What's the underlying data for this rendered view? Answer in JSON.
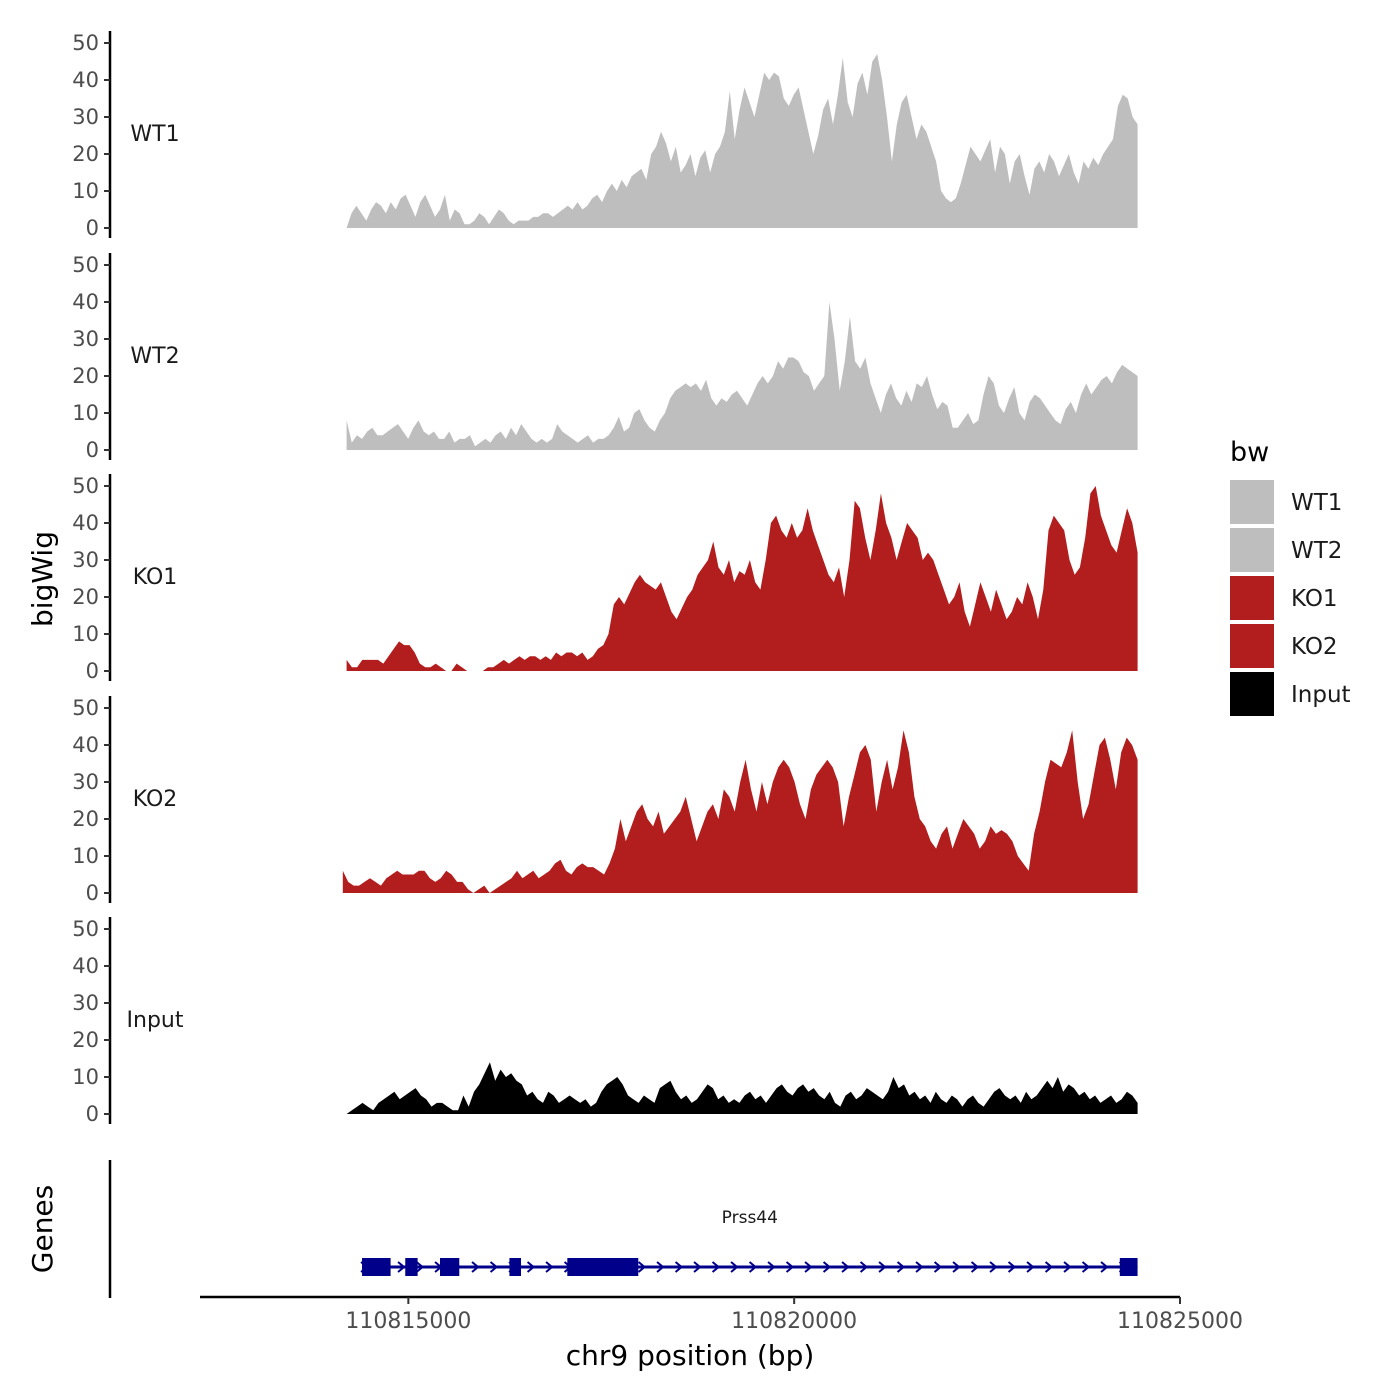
{
  "chart_data": {
    "type": "area",
    "title": "",
    "xlabel": "chr9 position (bp)",
    "ylabel": "bigWig",
    "genes_label": "Genes",
    "xlim": [
      110812300,
      110825000
    ],
    "x_ticks": [
      110815000,
      110820000,
      110825000
    ],
    "x_tick_labels": [
      "110815000",
      "110820000",
      "110825000"
    ],
    "ylim": [
      0,
      50
    ],
    "y_ticks": [
      0,
      10,
      20,
      30,
      40,
      50
    ],
    "y_tick_labels": [
      "0",
      "10",
      "20",
      "30",
      "40",
      "50"
    ],
    "legend": {
      "title": "bw",
      "position": "right",
      "entries": [
        {
          "name": "WT1",
          "color": "#bebebe"
        },
        {
          "name": "WT2",
          "color": "#bebebe"
        },
        {
          "name": "KO1",
          "color": "#b21e1e"
        },
        {
          "name": "KO2",
          "color": "#b21e1e"
        },
        {
          "name": "Input",
          "color": "#000000"
        }
      ]
    },
    "series": [
      {
        "name": "WT1",
        "color": "#bebebe",
        "x_start": 110814200,
        "x_end": 110824450,
        "values": [
          0,
          4,
          6,
          4,
          2,
          5,
          7,
          6,
          4,
          7,
          5,
          8,
          9,
          6,
          3,
          7,
          9,
          6,
          3,
          5,
          9,
          2,
          5,
          4,
          1,
          1,
          2,
          4,
          3,
          1,
          3,
          5,
          4,
          2,
          1,
          2,
          2,
          2,
          3,
          3,
          4,
          4,
          3,
          4,
          5,
          6,
          5,
          7,
          5,
          6,
          8,
          9,
          7,
          10,
          12,
          10,
          13,
          11,
          14,
          15,
          16,
          13,
          20,
          22,
          26,
          23,
          18,
          22,
          15,
          17,
          20,
          14,
          19,
          21,
          15,
          20,
          22,
          26,
          37,
          24,
          32,
          38,
          34,
          30,
          36,
          42,
          40,
          42,
          41,
          35,
          33,
          36,
          38,
          32,
          26,
          20,
          25,
          32,
          35,
          28,
          36,
          46,
          34,
          30,
          39,
          42,
          36,
          45,
          47,
          40,
          30,
          18,
          28,
          34,
          36,
          30,
          24,
          28,
          26,
          22,
          18,
          10,
          8,
          7,
          8,
          12,
          17,
          22,
          20,
          18,
          21,
          24,
          15,
          22,
          20,
          12,
          18,
          20,
          14,
          9,
          16,
          18,
          15,
          20,
          18,
          14,
          17,
          20,
          15,
          12,
          18,
          16,
          19,
          17,
          20,
          22,
          24,
          33,
          36,
          35,
          30,
          28
        ]
      },
      {
        "name": "WT2",
        "color": "#bebebe",
        "x_start": 110814200,
        "x_end": 110824450,
        "values": [
          8,
          2,
          4,
          3,
          5,
          6,
          4,
          4,
          5,
          6,
          7,
          5,
          3,
          6,
          8,
          5,
          4,
          5,
          3,
          3,
          5,
          2,
          3,
          3,
          4,
          1,
          2,
          3,
          2,
          4,
          5,
          3,
          6,
          4,
          7,
          5,
          3,
          2,
          3,
          2,
          3,
          7,
          5,
          4,
          3,
          2,
          3,
          4,
          2,
          3,
          3,
          4,
          6,
          9,
          5,
          6,
          10,
          11,
          8,
          6,
          5,
          8,
          10,
          14,
          16,
          17,
          18,
          17,
          18,
          16,
          19,
          14,
          12,
          14,
          13,
          15,
          16,
          14,
          12,
          15,
          18,
          20,
          18,
          20,
          24,
          22,
          25,
          25,
          24,
          21,
          20,
          16,
          18,
          20,
          40,
          30,
          16,
          24,
          36,
          24,
          22,
          25,
          18,
          14,
          10,
          15,
          18,
          14,
          12,
          16,
          13,
          18,
          17,
          20,
          15,
          11,
          13,
          12,
          6,
          6,
          8,
          10,
          7,
          8,
          15,
          20,
          18,
          12,
          10,
          14,
          17,
          10,
          8,
          13,
          15,
          14,
          12,
          10,
          8,
          7,
          11,
          13,
          10,
          15,
          18,
          15,
          17,
          19,
          20,
          18,
          21,
          23,
          22,
          21,
          20
        ]
      },
      {
        "name": "KO1",
        "color": "#b21e1e",
        "x_start": 110814200,
        "x_end": 110824450,
        "values": [
          3,
          1,
          1,
          3,
          3,
          3,
          3,
          2,
          4,
          6,
          8,
          7,
          7,
          5,
          2,
          1,
          1,
          2,
          1,
          0,
          0,
          2,
          1,
          0,
          0,
          0,
          0,
          1,
          1,
          2,
          3,
          2,
          3,
          4,
          3,
          4,
          4,
          3,
          4,
          3,
          5,
          4,
          5,
          5,
          4,
          5,
          3,
          4,
          6,
          7,
          10,
          18,
          20,
          18,
          21,
          24,
          26,
          24,
          23,
          22,
          24,
          20,
          16,
          14,
          17,
          20,
          22,
          26,
          28,
          30,
          35,
          28,
          26,
          30,
          24,
          27,
          26,
          30,
          24,
          22,
          30,
          40,
          42,
          38,
          36,
          40,
          36,
          38,
          44,
          38,
          34,
          30,
          26,
          24,
          28,
          20,
          30,
          46,
          44,
          36,
          30,
          38,
          48,
          40,
          36,
          30,
          35,
          40,
          38,
          36,
          30,
          32,
          30,
          26,
          22,
          18,
          20,
          24,
          16,
          12,
          18,
          24,
          20,
          16,
          22,
          18,
          14,
          16,
          20,
          18,
          24,
          20,
          14,
          22,
          38,
          42,
          40,
          38,
          30,
          26,
          28,
          36,
          48,
          50,
          42,
          38,
          34,
          32,
          38,
          44,
          40,
          32
        ]
      },
      {
        "name": "KO2",
        "color": "#b21e1e",
        "x_start": 110814150,
        "x_end": 110824450,
        "values": [
          6,
          3,
          2,
          2,
          3,
          4,
          3,
          2,
          4,
          5,
          6,
          5,
          5,
          5,
          6,
          6,
          4,
          3,
          4,
          6,
          5,
          3,
          3,
          1,
          0,
          1,
          2,
          0,
          1,
          2,
          3,
          4,
          6,
          4,
          5,
          6,
          4,
          5,
          6,
          8,
          9,
          6,
          5,
          7,
          8,
          7,
          7,
          6,
          5,
          8,
          12,
          20,
          14,
          18,
          22,
          24,
          20,
          18,
          22,
          16,
          18,
          20,
          22,
          26,
          20,
          14,
          18,
          22,
          24,
          20,
          28,
          26,
          22,
          30,
          36,
          28,
          22,
          30,
          24,
          30,
          34,
          36,
          34,
          30,
          24,
          20,
          28,
          32,
          34,
          36,
          34,
          30,
          18,
          26,
          32,
          38,
          40,
          36,
          22,
          30,
          36,
          28,
          34,
          44,
          38,
          26,
          20,
          18,
          14,
          12,
          16,
          18,
          12,
          16,
          20,
          18,
          16,
          12,
          14,
          18,
          16,
          17,
          16,
          14,
          10,
          8,
          6,
          16,
          22,
          30,
          36,
          35,
          34,
          38,
          44,
          30,
          20,
          24,
          32,
          40,
          42,
          36,
          28,
          38,
          42,
          40,
          36
        ]
      },
      {
        "name": "Input",
        "color": "#000000",
        "x_start": 110814200,
        "x_end": 110824450,
        "values": [
          0,
          1,
          2,
          3,
          2,
          1,
          3,
          4,
          5,
          6,
          4,
          5,
          6,
          7,
          5,
          4,
          2,
          3,
          3,
          2,
          1,
          1,
          5,
          2,
          6,
          8,
          11,
          14,
          9,
          12,
          10,
          11,
          9,
          8,
          5,
          6,
          4,
          3,
          6,
          5,
          3,
          4,
          5,
          4,
          3,
          4,
          2,
          3,
          6,
          8,
          9,
          10,
          8,
          5,
          4,
          3,
          5,
          4,
          3,
          7,
          8,
          9,
          6,
          4,
          5,
          3,
          4,
          6,
          8,
          7,
          4,
          5,
          3,
          4,
          3,
          5,
          6,
          4,
          5,
          3,
          5,
          7,
          8,
          6,
          5,
          7,
          8,
          6,
          7,
          5,
          4,
          6,
          3,
          2,
          5,
          6,
          4,
          5,
          7,
          6,
          5,
          4,
          6,
          10,
          7,
          8,
          5,
          6,
          4,
          5,
          3,
          6,
          4,
          3,
          5,
          4,
          2,
          4,
          5,
          3,
          2,
          4,
          6,
          7,
          5,
          4,
          5,
          3,
          6,
          4,
          5,
          7,
          9,
          7,
          10,
          6,
          8,
          7,
          5,
          6,
          4,
          5,
          3,
          4,
          5,
          3,
          4,
          6,
          5,
          3
        ]
      }
    ],
    "gene": {
      "name": "Prss44",
      "color": "#00008b",
      "strand": "+",
      "start": 110814400,
      "end": 110824450,
      "exons": [
        [
          110814400,
          110814770
        ],
        [
          110814960,
          110815120
        ],
        [
          110815410,
          110815660
        ],
        [
          110816310,
          110816460
        ],
        [
          110817060,
          110817980
        ],
        [
          110824220,
          110824450
        ]
      ]
    }
  }
}
